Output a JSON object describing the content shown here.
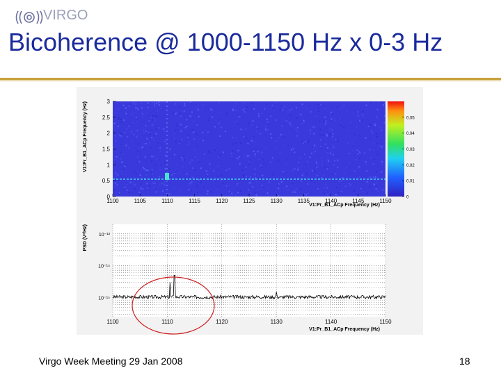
{
  "slide": {
    "title": "Bicoherence @ 1000-1150 Hz x 0-3 Hz",
    "footer": "Virgo Week Meeting 29 Jan 2008",
    "page_number": "18",
    "logo_text": "VIRGO"
  },
  "colors": {
    "title": "#1a2a9c",
    "rule": "#c8a23a",
    "heatmap_bg": "#3a3adc",
    "highlight_circle": "#d02020"
  },
  "chart_data": [
    {
      "type": "heatmap",
      "xlabel": "V1:Pr_B1_ACp Frequency (Hz)",
      "ylabel": "V1:Pr_B1_ACp Frequency (Hz)",
      "xlim": [
        1100,
        1150
      ],
      "ylim": [
        0,
        3
      ],
      "x_ticks": [
        "1100",
        "1105",
        "1110",
        "1115",
        "1120",
        "1125",
        "1130",
        "1135",
        "1140",
        "1145",
        "1150"
      ],
      "y_ticks": [
        "0",
        "0.5",
        "1",
        "1.5",
        "2",
        "2.5",
        "3"
      ],
      "colorbar": {
        "range": [
          0,
          0.06
        ],
        "ticks": [
          "0",
          "0.01",
          "0.02",
          "0.03",
          "0.04",
          "0.05"
        ]
      },
      "features": [
        {
          "x": 1110,
          "y": 0.5,
          "value": 0.02
        },
        {
          "x": 1130,
          "y": 0.5,
          "value": 0.015
        }
      ]
    },
    {
      "type": "line",
      "xlabel": "V1:Pr_B1_ACp Frequency (Hz)",
      "ylabel": "PSD (V²/Hz)",
      "xlim": [
        1100,
        1150
      ],
      "x_ticks": [
        "1100",
        "1110",
        "1120",
        "1130",
        "1140",
        "1150"
      ],
      "y_ticks": [
        "10⁻¹³",
        "10⁻¹⁴",
        "10⁻¹⁵"
      ],
      "yscale": "log",
      "grid": true,
      "peaks": [
        {
          "x": 1110.5,
          "y": 3e-15
        },
        {
          "x": 1111.3,
          "y": 5e-15
        },
        {
          "x": 1130,
          "y": 1.5e-15
        }
      ]
    }
  ]
}
